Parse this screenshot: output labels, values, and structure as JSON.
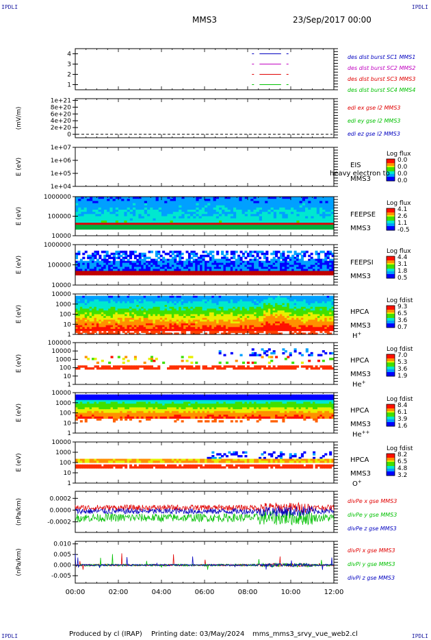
{
  "corner_label": "IPDLI",
  "header": {
    "spacecraft": "MMS3",
    "date_time": "23/Sep/2017 00:00"
  },
  "footer": {
    "producer": "Produced by cl (IRAP)",
    "printing_date": "Printing date: 03/May/2024",
    "script": "mms_mms3_srvy_vue_web2.cl"
  },
  "colors": {
    "red": "#e00000",
    "green": "#00c000",
    "blue": "#0000c0",
    "magenta": "#c000c0"
  },
  "chart_data": [
    {
      "type": "line",
      "panel": "burst-availability",
      "ylim": [
        0.5,
        4.5
      ],
      "yticks": [
        "4",
        "3",
        "2",
        "1"
      ],
      "series": [
        {
          "name": "des dist burst SC1 MMS1",
          "color": "#0000c0",
          "level": 4,
          "segments": [
            [
              8.2,
              8.2
            ],
            [
              8.55,
              9.55
            ],
            [
              9.8,
              9.8
            ]
          ]
        },
        {
          "name": "des dist burst SC2 MMS2",
          "color": "#c000c0",
          "level": 3,
          "segments": [
            [
              8.2,
              8.2
            ],
            [
              8.55,
              9.55
            ],
            [
              9.8,
              9.8
            ]
          ]
        },
        {
          "name": "des dist burst SC3 MMS3",
          "color": "#e00000",
          "level": 2,
          "segments": [
            [
              8.2,
              8.2
            ],
            [
              8.55,
              9.55
            ],
            [
              9.8,
              9.8
            ]
          ]
        },
        {
          "name": "des dist burst SC4 MMS4",
          "color": "#00c000",
          "level": 1,
          "segments": [
            [
              8.2,
              8.2
            ],
            [
              8.55,
              9.55
            ],
            [
              9.8,
              9.8
            ]
          ]
        }
      ]
    },
    {
      "type": "line",
      "panel": "edi",
      "ylabel": "(mV/m)",
      "ylim": [
        -1e+20,
        1.05e+21
      ],
      "yticks": [
        "1e+21",
        "8e+20",
        "6e+20",
        "4e+20",
        "2e+20",
        "0"
      ],
      "series": [
        {
          "name": "edi ex gse l2 MMS3",
          "color": "#e00000"
        },
        {
          "name": "edi ey gse l2 MMS3",
          "color": "#00c000"
        },
        {
          "name": "edi ez gse l2 MMS3",
          "color": "#0000c0"
        }
      ]
    },
    {
      "type": "heatmap",
      "panel": "eis",
      "ylabel": "E (eV)",
      "scale": "log",
      "yticks": [
        "1e+07",
        "1e+06",
        "1e+05",
        "1e+04"
      ],
      "instrument": "EIS",
      "spacecraft": "MMS3",
      "overlay_text": "heavy electron to",
      "colorbar": {
        "title": "Log flux",
        "ticks": [
          "0.0",
          "0.0",
          "0.0",
          "0.0"
        ]
      }
    },
    {
      "type": "heatmap",
      "panel": "feepse",
      "ylabel": "E (eV)",
      "scale": "log",
      "yticks": [
        "1000000",
        "100000",
        "10000"
      ],
      "instrument": "FEEPSE",
      "spacecraft": "MMS3",
      "colorbar": {
        "title": "Log flux",
        "ticks": [
          "4.1",
          "2.6",
          "1.1",
          "-0.5"
        ]
      }
    },
    {
      "type": "heatmap",
      "panel": "feepsi",
      "ylabel": "E (eV)",
      "scale": "log",
      "yticks": [
        "1000000",
        "100000",
        "10000"
      ],
      "instrument": "FEEPSI",
      "spacecraft": "MMS3",
      "colorbar": {
        "title": "Log flux",
        "ticks": [
          "4.4",
          "3.1",
          "1.8",
          "0.5"
        ]
      }
    },
    {
      "type": "heatmap",
      "panel": "hpca-h",
      "ylabel": "E (eV)",
      "scale": "log",
      "yticks": [
        "10000",
        "1000",
        "100",
        "10",
        "1"
      ],
      "instrument": "HPCA",
      "spacecraft": "MMS3",
      "species": "H",
      "charge": "+",
      "colorbar": {
        "title": "Log fdist",
        "ticks": [
          "9.3",
          "6.5",
          "3.6",
          "0.7"
        ]
      }
    },
    {
      "type": "heatmap",
      "panel": "hpca-he",
      "ylabel": "E (eV)",
      "scale": "log",
      "yticks": [
        "100000",
        "10000",
        "1000",
        "100",
        "10",
        "1"
      ],
      "instrument": "HPCA",
      "spacecraft": "MMS3",
      "species": "He",
      "charge": "+",
      "colorbar": {
        "title": "Log fdist",
        "ticks": [
          "7.0",
          "5.3",
          "3.6",
          "1.9"
        ]
      }
    },
    {
      "type": "heatmap",
      "panel": "hpca-hepp",
      "ylabel": "E (eV)",
      "scale": "log",
      "yticks": [
        "10000",
        "1000",
        "100",
        "10",
        "1"
      ],
      "instrument": "HPCA",
      "spacecraft": "MMS3",
      "species": "He",
      "charge": "++",
      "colorbar": {
        "title": "Log fdist",
        "ticks": [
          "8.4",
          "6.1",
          "3.9",
          "1.6"
        ]
      }
    },
    {
      "type": "heatmap",
      "panel": "hpca-o",
      "ylabel": "E (eV)",
      "scale": "log",
      "yticks": [
        "10000",
        "1000",
        "100",
        "10",
        "1"
      ],
      "instrument": "HPCA",
      "spacecraft": "MMS3",
      "species": "O",
      "charge": "+",
      "colorbar": {
        "title": "Log fdist",
        "ticks": [
          "8.2",
          "6.5",
          "4.8",
          "3.2"
        ]
      }
    },
    {
      "type": "line",
      "panel": "divpe",
      "ylabel": "(nPa/km)",
      "ylim": [
        -0.00038,
        0.00032
      ],
      "yticks": [
        "0.0002",
        "0.0000",
        "-0.0002"
      ],
      "series": [
        {
          "name": "divPe x gse MMS3",
          "color": "#e00000",
          "mean": 4e-05,
          "amp": 5e-05
        },
        {
          "name": "divPe y gse MMS3",
          "color": "#00c000",
          "mean": -0.00013,
          "amp": 7e-05
        },
        {
          "name": "divPe z gse MMS3",
          "color": "#0000c0",
          "mean": -2e-05,
          "amp": 5e-05
        }
      ]
    },
    {
      "type": "line",
      "panel": "divpi",
      "ylabel": "(nPa/km)",
      "ylim": [
        -0.0085,
        0.0112
      ],
      "yticks": [
        "0.010",
        "0.005",
        "0.000",
        "-0.005"
      ],
      "series": [
        {
          "name": "divPi x gse MMS3",
          "color": "#e00000",
          "mean": 0.0,
          "amp": 0.0004
        },
        {
          "name": "divPi y gse MMS3",
          "color": "#00c000",
          "mean": 0.0,
          "amp": 0.0005
        },
        {
          "name": "divPi z gse MMS3",
          "color": "#0000c0",
          "mean": 0.0,
          "amp": 0.0004
        }
      ]
    }
  ],
  "x_axis": {
    "type": "time",
    "range": [
      "00:00",
      "12:00"
    ],
    "ticks": [
      "00:00",
      "02:00",
      "04:00",
      "06:00",
      "08:00",
      "10:00",
      "12:00"
    ]
  }
}
